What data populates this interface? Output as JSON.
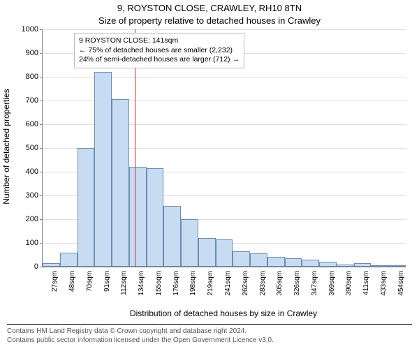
{
  "chart": {
    "type": "histogram",
    "title_line1": "9, ROYSTON CLOSE, CRAWLEY, RH10 8TN",
    "title_line2": "Size of property relative to detached houses in Crawley",
    "ylabel": "Number of detached properties",
    "xlabel": "Distribution of detached houses by size in Crawley",
    "background_color": "#ffffff",
    "grid_color": "#dddddd",
    "axis_color": "#808080",
    "bar_fill": "#c7dcf2",
    "bar_edge": "#6a8cb5",
    "ref_line_color": "#d62728",
    "ylim": [
      0,
      1000
    ],
    "ytick_step": 100,
    "x_tick_start": 27,
    "x_tick_step": 21.35,
    "x_tick_count": 21,
    "x_unit_suffix": "sqm",
    "ref_value_x": 141,
    "annotation": {
      "line1": "9 ROYSTON CLOSE: 141sqm",
      "line2": "← 75% of detached houses are smaller (2,232)",
      "line3": "24% of semi-detached houses are larger (712) →"
    },
    "values": [
      15,
      60,
      500,
      820,
      705,
      420,
      415,
      255,
      200,
      120,
      115,
      65,
      55,
      40,
      35,
      30,
      20,
      10,
      15,
      5,
      5
    ],
    "title_fontsize": 13,
    "label_fontsize": 12,
    "tick_fontsize": 11,
    "xtick_fontsize": 10,
    "anno_fontsize": 10.5,
    "attribution_line1": "Contains HM Land Registry data © Crown copyright and database right 2024.",
    "attribution_line2": "Contains public sector information licensed under the Open Government Licence v3.0."
  }
}
